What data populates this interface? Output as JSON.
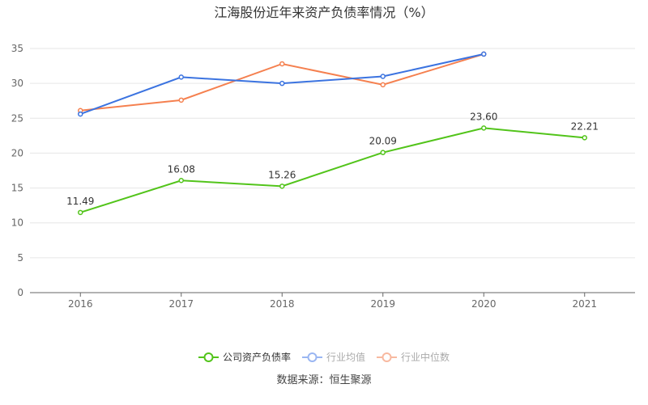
{
  "chart_data": {
    "type": "line",
    "title": "江海股份近年来资产负债率情况（%）",
    "categories": [
      "2016",
      "2017",
      "2018",
      "2019",
      "2020",
      "2021"
    ],
    "ylim": [
      0,
      35
    ],
    "yticks": [
      0,
      5,
      10,
      15,
      20,
      25,
      30,
      35
    ],
    "grid": true,
    "legend_position": "bottom",
    "series": [
      {
        "name": "公司资产负债率",
        "color": "#52c41a",
        "values": [
          11.49,
          16.08,
          15.26,
          20.09,
          23.6,
          22.21
        ],
        "labels": [
          "11.49",
          "16.08",
          "15.26",
          "20.09",
          "23.60",
          "22.21"
        ],
        "legend_active": true
      },
      {
        "name": "行业均值",
        "color": "#3b73e0",
        "legend_color": "#9ab6f2",
        "values": [
          25.6,
          30.9,
          30.0,
          31.0,
          34.2,
          null
        ],
        "legend_active": false
      },
      {
        "name": "行业中位数",
        "color": "#f5804f",
        "legend_color": "#f8b9a0",
        "values": [
          26.1,
          27.6,
          32.8,
          29.8,
          34.2,
          null
        ],
        "legend_active": false
      }
    ]
  },
  "source": "数据来源：恒生聚源"
}
